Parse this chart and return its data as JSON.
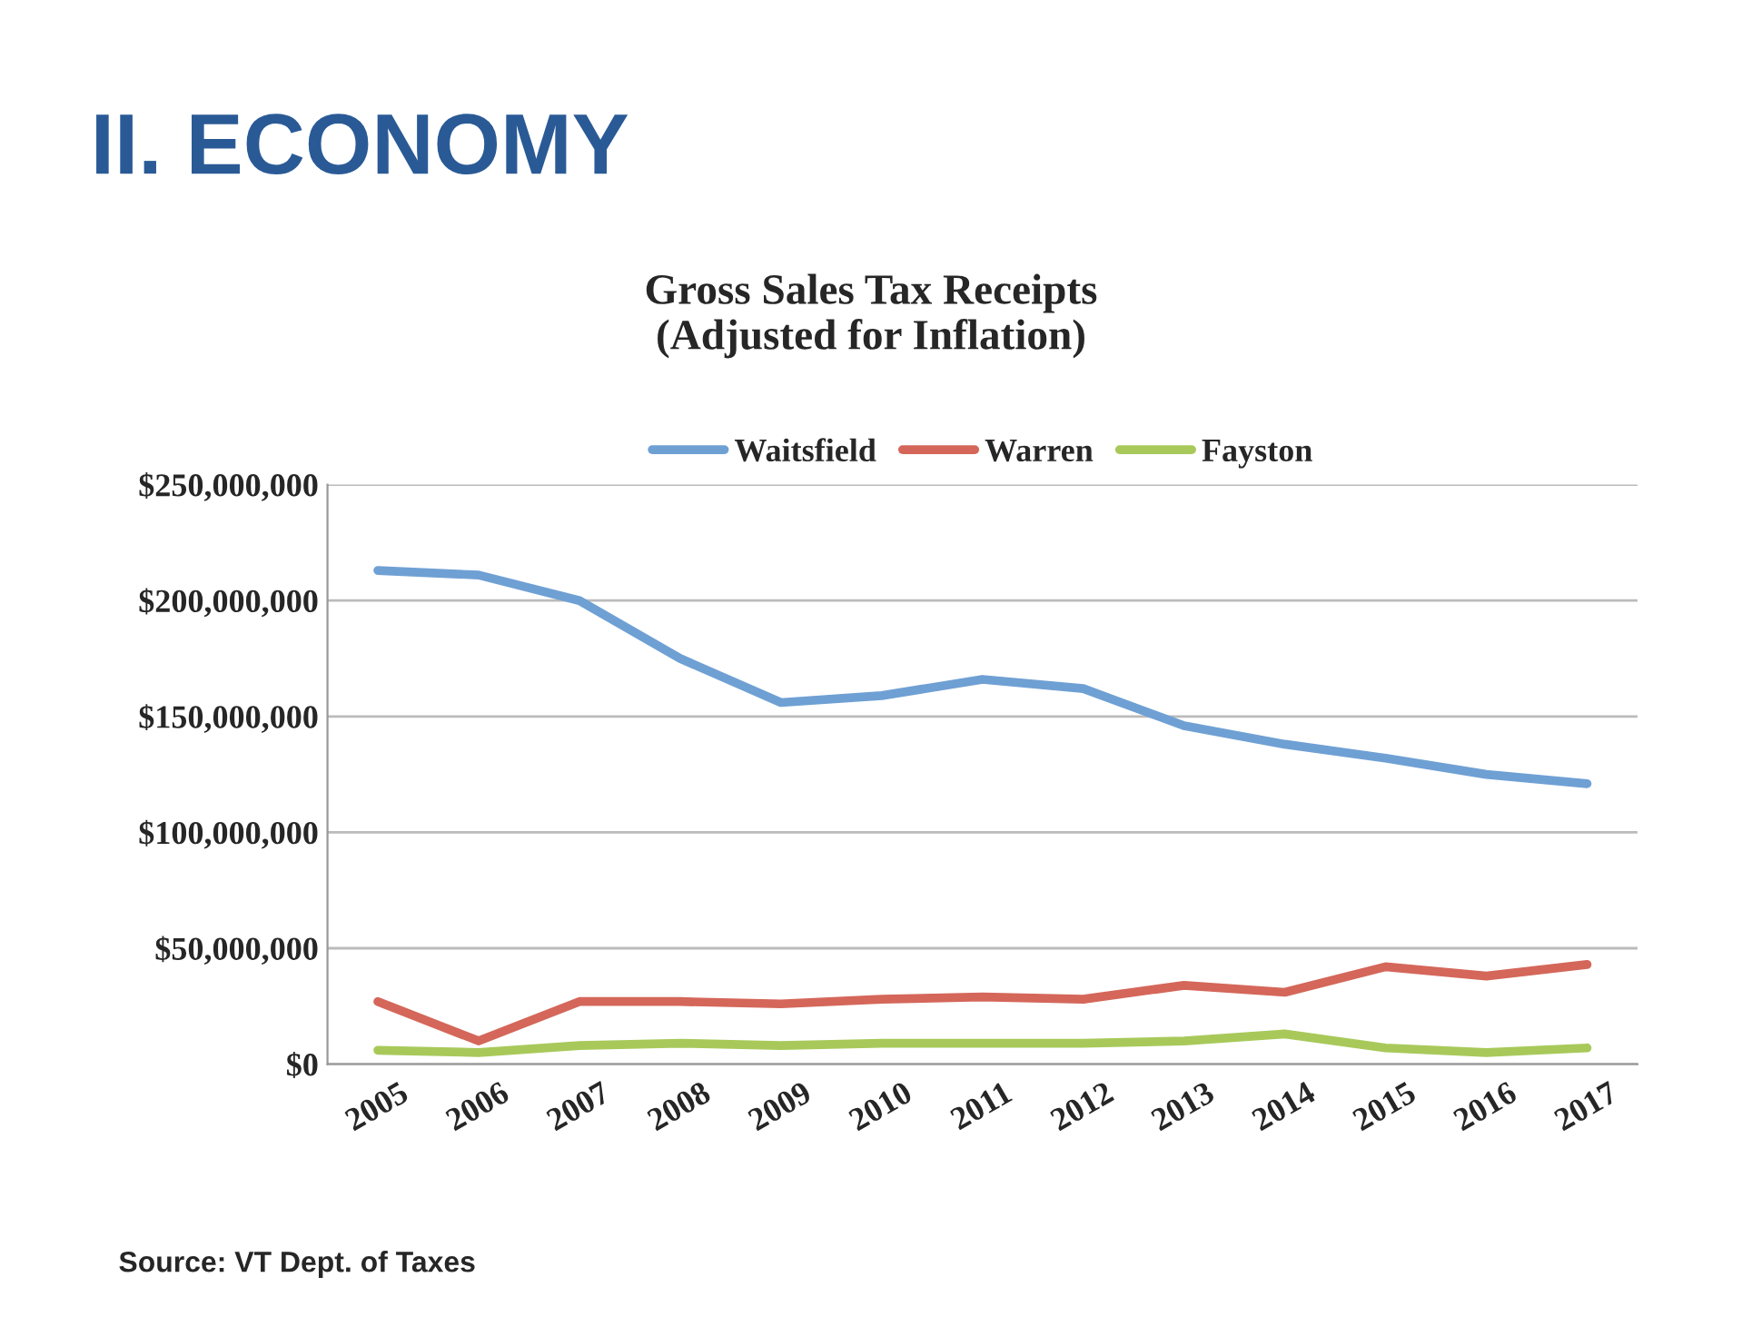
{
  "chart_data": {
    "type": "line",
    "title": "Gross Sales Tax Receipts\n(Adjusted for Inflation)",
    "categories": [
      "2005",
      "2006",
      "2007",
      "2008",
      "2009",
      "2010",
      "2011",
      "2012",
      "2013",
      "2014",
      "2015",
      "2016",
      "2017"
    ],
    "series": [
      {
        "name": "Waitsfield",
        "color": "#6fa0d4",
        "values": [
          213000000,
          211000000,
          200000000,
          175000000,
          156000000,
          159000000,
          166000000,
          162000000,
          146000000,
          138000000,
          132000000,
          125000000,
          121000000
        ]
      },
      {
        "name": "Warren",
        "color": "#d4675a",
        "values": [
          27000000,
          10000000,
          27000000,
          27000000,
          26000000,
          28000000,
          29000000,
          28000000,
          34000000,
          31000000,
          42000000,
          38000000,
          43000000
        ]
      },
      {
        "name": "Fayston",
        "color": "#a8c95a",
        "values": [
          6000000,
          5000000,
          8000000,
          9000000,
          8000000,
          9000000,
          9000000,
          9000000,
          10000000,
          13000000,
          7000000,
          5000000,
          7000000
        ]
      }
    ],
    "ylim": [
      0,
      250000000
    ],
    "yticks": [
      {
        "value": 0,
        "label": "$0"
      },
      {
        "value": 50000000,
        "label": "$50,000,000"
      },
      {
        "value": 100000000,
        "label": "$100,000,000"
      },
      {
        "value": 150000000,
        "label": "$150,000,000"
      },
      {
        "value": 200000000,
        "label": "$200,000,000"
      },
      {
        "value": 250000000,
        "label": "$250,000,000"
      }
    ],
    "grid": "y",
    "legend": "top",
    "marker": "none",
    "line_style": "solid",
    "annotations": [
      "II. ECONOMY",
      "Source: VT Dept. of Taxes"
    ]
  }
}
